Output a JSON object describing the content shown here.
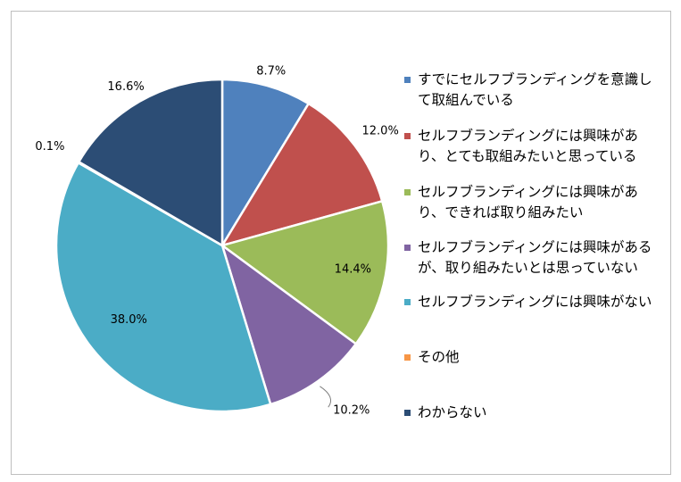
{
  "chart_data": {
    "type": "pie",
    "categories": [
      "すでにセルフブランディングを意識して取組んでいる",
      "セルフブランディングには興味があり、とても取組みたいと思っている",
      "セルフブランディングには興味があり、できれば取り組みたい",
      "セルフブランディングには興味があるが、取り組みたいとは思っていない",
      "セルフブランディングには興味がない",
      "その他",
      "わからない"
    ],
    "legend_lines": [
      "すでにセルフブランディングを意識し\nて取組んでいる",
      "セルフブランディングには興味があ\nり、とても取組みたいと思っている",
      "セルフブランディングには興味があ\nり、できれば取り組みたい",
      "セルフブランディングには興味がある\nが、取り組みたいとは思っていない",
      "セルフブランディングには興味がない",
      "その他",
      "わからない"
    ],
    "values": [
      8.7,
      12.0,
      14.4,
      10.2,
      38.0,
      0.1,
      16.6
    ],
    "data_labels": [
      "8.7%",
      "12.0%",
      "14.4%",
      "10.2%",
      "38.0%",
      "0.1%",
      "16.6%"
    ],
    "colors": [
      "#4f81bd",
      "#c0504d",
      "#9bbb59",
      "#8064a2",
      "#4bacc6",
      "#f79646",
      "#2c4d75"
    ],
    "start_position": "top, clockwise",
    "legend_position": "right"
  }
}
